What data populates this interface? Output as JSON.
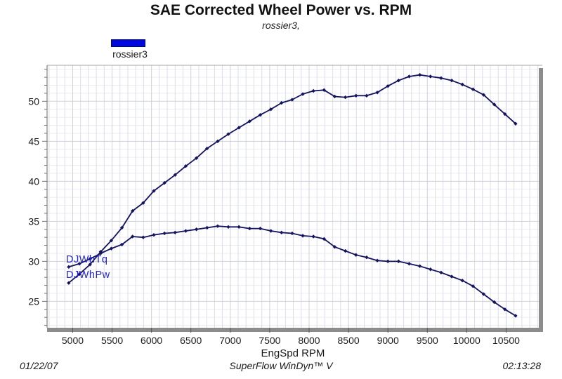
{
  "header": {
    "title": "SAE Corrected Wheel Power vs. RPM",
    "subtitle": "rossier3,"
  },
  "legend": {
    "label": "rossier3",
    "swatch_color": "#0009dd"
  },
  "footer": {
    "date": "01/22/07",
    "app": "SuperFlow WinDyn™ V",
    "time": "02:13:28"
  },
  "colors": {
    "curve": "#14145f",
    "curve_label": "#2323cf",
    "grid_minor_h": "#ececf3",
    "grid_minor_v": "#dcdde8",
    "grid_major": "#ced0de",
    "frame_shadow": "#8c8c8c",
    "axis": "#666666",
    "tick_text": "#1a1a1a"
  },
  "chart_data": {
    "type": "line",
    "title": "SAE Corrected Wheel Power vs. RPM",
    "subtitle": "rossier3,",
    "xlabel": "EngSpd  RPM",
    "ylabel": "",
    "xlim": [
      4675,
      10915
    ],
    "ylim": [
      21.7,
      54.5
    ],
    "x_ticks": [
      5000,
      5500,
      6000,
      6500,
      7000,
      7500,
      8000,
      8500,
      9000,
      9500,
      10000,
      10500
    ],
    "y_ticks": [
      25,
      30,
      35,
      40,
      45,
      50
    ],
    "x_minor_step": 100,
    "y_minor_step": 1,
    "grid": true,
    "legend_position": "top-left",
    "x": [
      4950,
      5085,
      5220,
      5355,
      5490,
      5625,
      5760,
      5895,
      6030,
      6165,
      6300,
      6435,
      6570,
      6705,
      6840,
      6975,
      7110,
      7245,
      7380,
      7515,
      7650,
      7785,
      7920,
      8055,
      8190,
      8325,
      8460,
      8595,
      8730,
      8865,
      9000,
      9135,
      9270,
      9405,
      9540,
      9675,
      9810,
      9945,
      10080,
      10215,
      10350,
      10485,
      10620
    ],
    "series": [
      {
        "name": "wheel-power",
        "label": "DJWhPw",
        "values": [
          27.3,
          28.4,
          29.6,
          31.2,
          32.6,
          34.2,
          36.3,
          37.3,
          38.8,
          39.8,
          40.8,
          41.9,
          42.9,
          44.1,
          45.0,
          45.9,
          46.7,
          47.5,
          48.3,
          49.0,
          49.8,
          50.2,
          50.9,
          51.3,
          51.4,
          50.6,
          50.5,
          50.7,
          50.7,
          51.1,
          51.9,
          52.6,
          53.1,
          53.3,
          53.1,
          52.9,
          52.6,
          52.1,
          51.5,
          50.8,
          49.6,
          48.4,
          47.2
        ]
      },
      {
        "name": "wheel-torque",
        "label": "DJWhTq",
        "values": [
          29.3,
          29.7,
          30.3,
          31.0,
          31.6,
          32.1,
          33.1,
          33.0,
          33.3,
          33.5,
          33.6,
          33.8,
          34.0,
          34.2,
          34.4,
          34.3,
          34.3,
          34.1,
          34.1,
          33.8,
          33.6,
          33.5,
          33.2,
          33.1,
          32.8,
          31.8,
          31.3,
          30.8,
          30.5,
          30.1,
          30.0,
          30.0,
          29.7,
          29.4,
          29.0,
          28.6,
          28.1,
          27.6,
          26.9,
          25.9,
          24.9,
          24.0,
          23.2
        ]
      }
    ]
  }
}
